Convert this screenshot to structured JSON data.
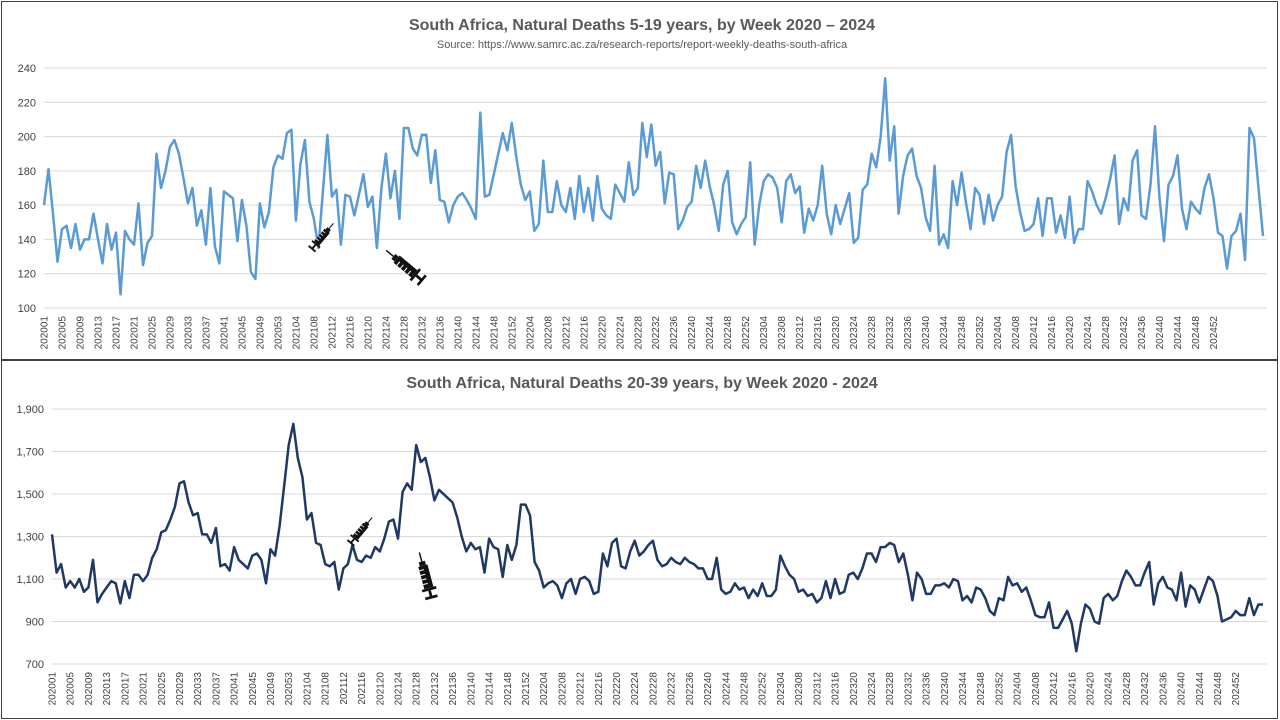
{
  "chart_data": [
    {
      "type": "line",
      "title": "South Africa,  Natural Deaths 5-19 years, by Week 2020 – 2024",
      "subtitle": "Source: https://www.samrc.ac.za/research-reports/report-weekly-deaths-south-africa",
      "xlabel": "",
      "ylabel": "",
      "ylim": [
        100,
        240
      ],
      "yticks": [
        "100",
        "120",
        "140",
        "160",
        "180",
        "200",
        "220",
        "240"
      ],
      "ytick_values": [
        100,
        120,
        140,
        160,
        180,
        200,
        220,
        240
      ],
      "grid": true,
      "line_color": "#5B9BD5",
      "xticks": [
        "202001",
        "202005",
        "202009",
        "202013",
        "202017",
        "202021",
        "202025",
        "202029",
        "202033",
        "202037",
        "202041",
        "202045",
        "202049",
        "202053",
        "202104",
        "202108",
        "202112",
        "202116",
        "202120",
        "202124",
        "202128",
        "202132",
        "202136",
        "202140",
        "202144",
        "202148",
        "202152",
        "202204",
        "202208",
        "202212",
        "202216",
        "202220",
        "202224",
        "202228",
        "202232",
        "202236",
        "202240",
        "202244",
        "202248",
        "202252",
        "202304",
        "202308",
        "202312",
        "202316",
        "202320",
        "202324",
        "202328",
        "202332",
        "202336",
        "202340",
        "202344",
        "202348",
        "202352",
        "202404",
        "202408",
        "202412",
        "202416",
        "202420",
        "202424",
        "202428",
        "202432",
        "202436",
        "202440",
        "202444",
        "202448",
        "202452"
      ],
      "annotations": [
        {
          "icon": "syringe-icon",
          "week_index": 62,
          "value": 142
        },
        {
          "icon": "syringe-icon",
          "week_index": 80,
          "value": 125
        }
      ],
      "series": [
        {
          "values": [
            160,
            181,
            155,
            127,
            146,
            148,
            135,
            149,
            134,
            140,
            140,
            155,
            140,
            126,
            149,
            134,
            144,
            108,
            145,
            140,
            137,
            161,
            125,
            138,
            142,
            190,
            170,
            180,
            194,
            198,
            190,
            176,
            161,
            170,
            148,
            157,
            137,
            170,
            136,
            126,
            168,
            166,
            164,
            139,
            163,
            148,
            121,
            117,
            161,
            147,
            156,
            182,
            189,
            187,
            202,
            204,
            151,
            184,
            198,
            162,
            152,
            135,
            168,
            201,
            165,
            169,
            137,
            166,
            165,
            154,
            166,
            178,
            159,
            165,
            135,
            170,
            190,
            164,
            180,
            152,
            205,
            205,
            193,
            189,
            201,
            201,
            173,
            192,
            163,
            162,
            150,
            160,
            165,
            167,
            163,
            158,
            152,
            214,
            165,
            166,
            178,
            190,
            202,
            192,
            208,
            188,
            172,
            163,
            168,
            145,
            149,
            186,
            156,
            156,
            174,
            160,
            156,
            170,
            152,
            177,
            156,
            170,
            151,
            177,
            158,
            154,
            152,
            172,
            167,
            162,
            185,
            166,
            170,
            208,
            188,
            207,
            183,
            191,
            161,
            179,
            178,
            146,
            151,
            159,
            162,
            183,
            170,
            186,
            171,
            160,
            145,
            172,
            180,
            150,
            143,
            149,
            153,
            185,
            137,
            160,
            174,
            178,
            176,
            170,
            150,
            174,
            178,
            167,
            171,
            144,
            158,
            151,
            160,
            183,
            155,
            143,
            160,
            149,
            158,
            167,
            138,
            141,
            169,
            172,
            190,
            182,
            200,
            234,
            186,
            206,
            155,
            177,
            189,
            193,
            177,
            170,
            153,
            145,
            183,
            137,
            143,
            135,
            174,
            160,
            179,
            161,
            146,
            170,
            166,
            149,
            166,
            151,
            160,
            165,
            191,
            201,
            171,
            156,
            145,
            146,
            149,
            164,
            142,
            164,
            164,
            144,
            154,
            141,
            165,
            138,
            146,
            146,
            174,
            168,
            160,
            155,
            164,
            175,
            189,
            149,
            164,
            157,
            186,
            192,
            154,
            152,
            172,
            206,
            164,
            139,
            172,
            177,
            189,
            158,
            146,
            162,
            158,
            155,
            170,
            178,
            164,
            144,
            142,
            123,
            142,
            145,
            155,
            128,
            205,
            199,
            170,
            142
          ]
        }
      ]
    },
    {
      "type": "line",
      "title": "South Africa,  Natural Deaths 20-39 years, by Week 2020 - 2024",
      "xlabel": "",
      "ylabel": "",
      "ylim": [
        700,
        1900
      ],
      "yticks": [
        "700",
        "900",
        "1,100",
        "1,300",
        "1,500",
        "1,700",
        "1,900"
      ],
      "ytick_values": [
        700,
        900,
        1100,
        1300,
        1500,
        1700,
        1900
      ],
      "grid": true,
      "line_color": "#203864",
      "xticks": [
        "202001",
        "202005",
        "202009",
        "202013",
        "202017",
        "202021",
        "202025",
        "202029",
        "202033",
        "202037",
        "202041",
        "202045",
        "202049",
        "202053",
        "202104",
        "202108",
        "202112",
        "202116",
        "202120",
        "202124",
        "202128",
        "202132",
        "202136",
        "202140",
        "202144",
        "202148",
        "202152",
        "202204",
        "202208",
        "202212",
        "202216",
        "202220",
        "202224",
        "202228",
        "202232",
        "202236",
        "202240",
        "202244",
        "202248",
        "202252",
        "202304",
        "202308",
        "202312",
        "202316",
        "202320",
        "202324",
        "202328",
        "202332",
        "202336",
        "202340",
        "202344",
        "202348",
        "202352",
        "202404",
        "202408",
        "202412",
        "202416",
        "202420",
        "202424",
        "202428",
        "202432",
        "202436",
        "202440",
        "202444",
        "202448",
        "202452"
      ],
      "annotations": [
        {
          "icon": "syringe-icon",
          "week_index": 68,
          "value": 1330
        },
        {
          "icon": "syringe-icon",
          "week_index": 82,
          "value": 1120
        }
      ],
      "series": [
        {
          "values": [
            1310,
            1130,
            1170,
            1060,
            1090,
            1060,
            1100,
            1040,
            1060,
            1190,
            990,
            1030,
            1060,
            1090,
            1080,
            985,
            1090,
            1010,
            1120,
            1120,
            1090,
            1120,
            1200,
            1240,
            1320,
            1330,
            1380,
            1440,
            1550,
            1560,
            1460,
            1400,
            1410,
            1310,
            1310,
            1270,
            1340,
            1160,
            1170,
            1140,
            1250,
            1190,
            1170,
            1150,
            1210,
            1220,
            1190,
            1080,
            1240,
            1210,
            1350,
            1540,
            1730,
            1830,
            1670,
            1580,
            1380,
            1410,
            1270,
            1260,
            1170,
            1160,
            1180,
            1050,
            1150,
            1170,
            1260,
            1190,
            1180,
            1210,
            1200,
            1250,
            1230,
            1290,
            1370,
            1380,
            1290,
            1510,
            1550,
            1520,
            1730,
            1650,
            1670,
            1580,
            1470,
            1520,
            1500,
            1480,
            1460,
            1390,
            1300,
            1230,
            1270,
            1240,
            1250,
            1130,
            1290,
            1250,
            1240,
            1110,
            1260,
            1190,
            1260,
            1450,
            1450,
            1400,
            1180,
            1140,
            1060,
            1080,
            1090,
            1070,
            1010,
            1080,
            1100,
            1030,
            1100,
            1110,
            1090,
            1030,
            1040,
            1220,
            1160,
            1270,
            1290,
            1160,
            1150,
            1230,
            1280,
            1210,
            1230,
            1260,
            1280,
            1190,
            1160,
            1170,
            1200,
            1180,
            1170,
            1200,
            1180,
            1170,
            1150,
            1150,
            1100,
            1100,
            1200,
            1050,
            1030,
            1040,
            1080,
            1050,
            1060,
            1010,
            1050,
            1020,
            1080,
            1020,
            1020,
            1050,
            1210,
            1160,
            1120,
            1100,
            1040,
            1050,
            1020,
            1030,
            990,
            1010,
            1090,
            1010,
            1100,
            1030,
            1040,
            1120,
            1130,
            1100,
            1150,
            1220,
            1220,
            1180,
            1250,
            1250,
            1270,
            1260,
            1180,
            1220,
            1120,
            1000,
            1130,
            1100,
            1030,
            1030,
            1070,
            1070,
            1080,
            1060,
            1100,
            1090,
            1000,
            1020,
            990,
            1060,
            1050,
            1010,
            950,
            930,
            1010,
            1000,
            1110,
            1070,
            1080,
            1040,
            1060,
            1000,
            930,
            920,
            920,
            990,
            870,
            870,
            910,
            950,
            890,
            760,
            890,
            980,
            960,
            900,
            890,
            1010,
            1030,
            1000,
            1020,
            1090,
            1140,
            1110,
            1070,
            1070,
            1130,
            1180,
            980,
            1080,
            1110,
            1060,
            1050,
            1000,
            1130,
            970,
            1070,
            1050,
            990,
            1050,
            1110,
            1090,
            1020,
            900,
            910,
            920,
            950,
            930,
            930,
            1010,
            930,
            980,
            980
          ]
        }
      ]
    }
  ]
}
